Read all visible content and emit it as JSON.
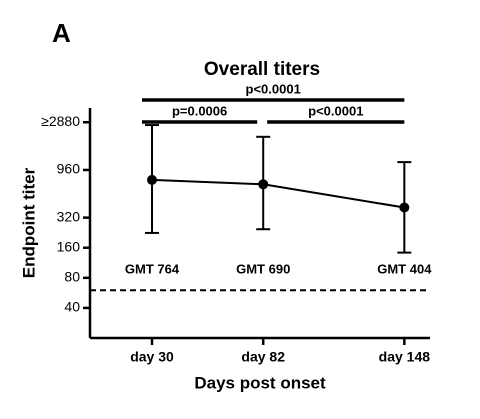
{
  "panel_label": "A",
  "chart_data": {
    "type": "line",
    "title": "Overall titers",
    "x_label": "Days post onset",
    "y_label": "Endpoint titer",
    "x": [
      30,
      82,
      148
    ],
    "series": [
      {
        "color": "#000000",
        "values": [
          764,
          690,
          404
        ],
        "value_labels": [
          "GMT 764",
          "GMT 690",
          "GMT 404"
        ],
        "ci_lower": [
          225,
          245,
          143
        ],
        "ci_upper": [
          2700,
          2060,
          1150
        ]
      }
    ],
    "xlim": [
      1,
      160
    ],
    "xticks": [
      {
        "value": 30,
        "label": "day 30"
      },
      {
        "value": 82,
        "label": "day 82"
      },
      {
        "value": 148,
        "label": "day 148"
      }
    ],
    "ylim": [
      20,
      4000
    ],
    "log_scale": true,
    "yticks": [
      40,
      80,
      160,
      320,
      960,
      {
        "value": 2880,
        "label": "≥2880"
      }
    ],
    "reference_line": 60,
    "brackets": [
      {
        "from": 30,
        "to": 148,
        "label": "p<0.0001"
      },
      {
        "from": 30,
        "to": 82,
        "label": "p=0.0006"
      },
      {
        "from": 82,
        "to": 148,
        "label": "p<0.0001"
      }
    ]
  }
}
